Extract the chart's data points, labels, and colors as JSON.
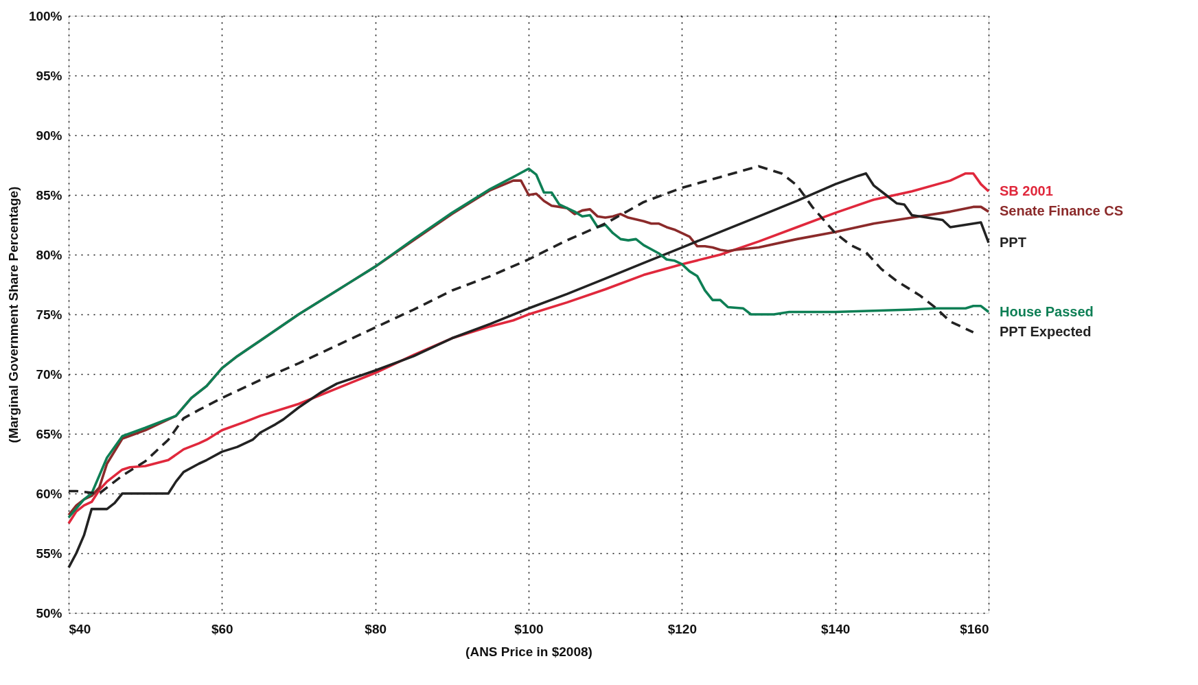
{
  "chart_data": {
    "type": "line",
    "xlabel": "(ANS Price in $2008)",
    "ylabel": "(Marginal Government Share Percentage)",
    "xlim": [
      40,
      160
    ],
    "ylim": [
      50,
      100
    ],
    "xticks": [
      {
        "value": 40,
        "label": "$40"
      },
      {
        "value": 60,
        "label": "$60"
      },
      {
        "value": 80,
        "label": "$80"
      },
      {
        "value": 100,
        "label": "$100"
      },
      {
        "value": 120,
        "label": "$120"
      },
      {
        "value": 140,
        "label": "$140"
      },
      {
        "value": 160,
        "label": "$160"
      }
    ],
    "yticks": [
      {
        "value": 50,
        "label": "50%"
      },
      {
        "value": 55,
        "label": "55%"
      },
      {
        "value": 60,
        "label": "60%"
      },
      {
        "value": 65,
        "label": "65%"
      },
      {
        "value": 70,
        "label": "70%"
      },
      {
        "value": 75,
        "label": "75%"
      },
      {
        "value": 80,
        "label": "80%"
      },
      {
        "value": 85,
        "label": "85%"
      },
      {
        "value": 90,
        "label": "90%"
      },
      {
        "value": 95,
        "label": "95%"
      },
      {
        "value": 100,
        "label": "100%"
      }
    ],
    "grid": true,
    "marker": "none",
    "series": [
      {
        "name": "SB 2001",
        "color": "#e0283c",
        "line_style": "solid",
        "x": [
          40,
          41,
          42,
          43,
          44,
          45,
          47,
          48,
          50,
          53,
          55,
          57,
          58,
          60,
          63,
          65,
          70,
          75,
          80,
          85,
          90,
          95,
          98,
          100,
          105,
          110,
          115,
          120,
          125,
          130,
          135,
          140,
          145,
          150,
          155,
          157,
          158,
          159,
          160
        ],
        "values": [
          57.5,
          58.5,
          59,
          59.3,
          60.3,
          61,
          62,
          62.2,
          62.3,
          62.8,
          63.7,
          64.2,
          64.5,
          65.3,
          66,
          66.5,
          67.5,
          68.8,
          70.1,
          71.6,
          73,
          74,
          74.5,
          75,
          76,
          77.1,
          78.3,
          79.2,
          80,
          81.1,
          82.3,
          83.5,
          84.6,
          85.3,
          86.2,
          86.8,
          86.8,
          85.9,
          85.3
        ]
      },
      {
        "name": "Senate Finance CS",
        "color": "#8b2a2a",
        "line_style": "solid",
        "x": [
          40,
          41,
          42,
          43,
          44,
          45,
          47,
          50,
          54,
          56,
          58,
          60,
          62,
          65,
          70,
          75,
          80,
          85,
          90,
          95,
          98,
          99,
          100,
          101,
          102,
          103,
          104,
          105,
          106,
          107,
          108,
          109,
          110,
          111,
          112,
          113,
          115,
          116,
          117,
          118,
          119,
          120,
          121,
          122,
          123,
          124,
          125,
          126,
          127,
          130,
          135,
          140,
          145,
          150,
          155,
          158,
          159,
          160
        ],
        "values": [
          58.2,
          59,
          59.5,
          59.8,
          60.5,
          62.5,
          64.6,
          65.3,
          66.5,
          68,
          69,
          70.5,
          71.5,
          72.8,
          75,
          77,
          79,
          81.2,
          83.4,
          85.4,
          86.2,
          86.2,
          85,
          85.1,
          84.5,
          84.1,
          84,
          83.9,
          83.4,
          83.7,
          83.8,
          83.2,
          83.1,
          83.2,
          83.4,
          83.1,
          82.8,
          82.6,
          82.6,
          82.3,
          82.1,
          81.8,
          81.5,
          80.7,
          80.7,
          80.6,
          80.4,
          80.3,
          80.4,
          80.6,
          81.3,
          81.9,
          82.6,
          83.1,
          83.6,
          84,
          84,
          83.6
        ]
      },
      {
        "name": "PPT",
        "color": "#222222",
        "line_style": "solid",
        "x": [
          40,
          41,
          42,
          43,
          45,
          46,
          47,
          53,
          54,
          55,
          57,
          58,
          60,
          62,
          64,
          65,
          67,
          68,
          70,
          73,
          75,
          80,
          85,
          90,
          95,
          100,
          105,
          110,
          115,
          120,
          125,
          130,
          135,
          140,
          143,
          144,
          145,
          146,
          148,
          149,
          150,
          152,
          154,
          155,
          158,
          159,
          160
        ],
        "values": [
          53.8,
          55,
          56.5,
          58.7,
          58.7,
          59.2,
          60,
          60,
          61,
          61.8,
          62.5,
          62.8,
          63.5,
          63.9,
          64.5,
          65.1,
          65.8,
          66.2,
          67.2,
          68.5,
          69.2,
          70.3,
          71.5,
          73,
          74.2,
          75.5,
          76.7,
          78,
          79.3,
          80.6,
          81.9,
          83.2,
          84.5,
          85.9,
          86.6,
          86.8,
          85.8,
          85.3,
          84.3,
          84.2,
          83.3,
          83.1,
          82.9,
          82.3,
          82.6,
          82.7,
          81
        ]
      },
      {
        "name": "House Passed",
        "color": "#0e7f55",
        "line_style": "solid",
        "x": [
          40,
          42,
          43,
          45,
          47,
          50,
          54,
          56,
          58,
          60,
          62,
          65,
          70,
          75,
          80,
          85,
          90,
          95,
          98,
          100,
          101,
          102,
          103,
          104,
          106,
          107,
          108,
          109,
          110,
          111,
          112,
          113,
          114,
          115,
          117,
          118,
          119,
          120,
          121,
          122,
          123,
          124,
          125,
          126,
          128,
          129,
          132,
          134,
          140,
          145,
          150,
          153,
          157,
          158,
          159,
          160
        ],
        "values": [
          58,
          59.5,
          60,
          63,
          64.8,
          65.5,
          66.5,
          68,
          69,
          70.5,
          71.5,
          72.8,
          75,
          77,
          79,
          81.3,
          83.5,
          85.5,
          86.5,
          87.2,
          86.7,
          85.2,
          85.2,
          84.2,
          83.6,
          83.2,
          83.3,
          82.3,
          82.5,
          81.8,
          81.3,
          81.2,
          81.3,
          80.8,
          80.1,
          79.6,
          79.5,
          79.2,
          78.6,
          78.2,
          77,
          76.2,
          76.2,
          75.6,
          75.5,
          75,
          75,
          75.2,
          75.2,
          75.3,
          75.4,
          75.5,
          75.5,
          75.7,
          75.7,
          75.2
        ]
      },
      {
        "name": "PPT Expected",
        "color": "#222222",
        "line_style": "dashed",
        "x": [
          40,
          41,
          44,
          47,
          50,
          53,
          55,
          57,
          60,
          65,
          70,
          75,
          80,
          85,
          90,
          95,
          100,
          105,
          110,
          115,
          120,
          125,
          130,
          133,
          135,
          137,
          140,
          142,
          144,
          146,
          148,
          151,
          153,
          155,
          158
        ],
        "values": [
          60.2,
          60.2,
          60,
          61.5,
          62.7,
          64.5,
          66.3,
          67,
          68,
          69.5,
          70.9,
          72.4,
          73.9,
          75.4,
          77,
          78.2,
          79.6,
          81.2,
          82.6,
          84.4,
          85.6,
          86.5,
          87.4,
          86.8,
          85.8,
          84,
          81.8,
          80.8,
          80.2,
          78.8,
          77.8,
          76.6,
          75.6,
          74.4,
          73.5
        ]
      }
    ]
  }
}
